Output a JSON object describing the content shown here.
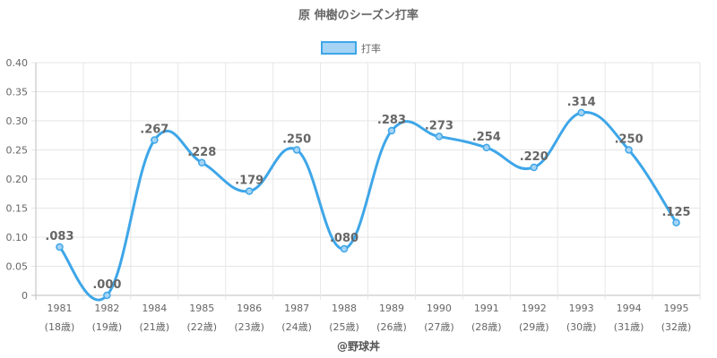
{
  "chart_data": {
    "type": "line",
    "title": "原 伸樹のシーズン打率",
    "legend_position": "top-center",
    "grid": true,
    "categories": [
      "1981",
      "1982",
      "1984",
      "1985",
      "1986",
      "1987",
      "1988",
      "1989",
      "1990",
      "1991",
      "1992",
      "1993",
      "1994",
      "1995"
    ],
    "ages": [
      "(18歳)",
      "(19歳)",
      "(21歳)",
      "(22歳)",
      "(23歳)",
      "(24歳)",
      "(25歳)",
      "(26歳)",
      "(27歳)",
      "(28歳)",
      "(29歳)",
      "(30歳)",
      "(31歳)",
      "(32歳)"
    ],
    "series": [
      {
        "name": "打率",
        "values": [
          0.083,
          0.0,
          0.267,
          0.228,
          0.179,
          0.25,
          0.08,
          0.283,
          0.273,
          0.254,
          0.22,
          0.314,
          0.25,
          0.125
        ],
        "labels": [
          ".083",
          ".000",
          ".267",
          ".228",
          ".179",
          ".250",
          ".080",
          ".283",
          ".273",
          ".254",
          ".220",
          ".314",
          ".250",
          ".125"
        ]
      }
    ],
    "ylim": [
      0,
      0.4
    ],
    "yticks": [
      0,
      0.05,
      0.1,
      0.15,
      0.2,
      0.25,
      0.3,
      0.35,
      0.4
    ],
    "ytick_labels": [
      "0",
      "0.05",
      "0.10",
      "0.15",
      "0.20",
      "0.25",
      "0.30",
      "0.35",
      "0.40"
    ],
    "colors": {
      "line": "#3ea6e8",
      "legend_fill": "#a6d4f5"
    }
  },
  "credit": "@野球丼"
}
